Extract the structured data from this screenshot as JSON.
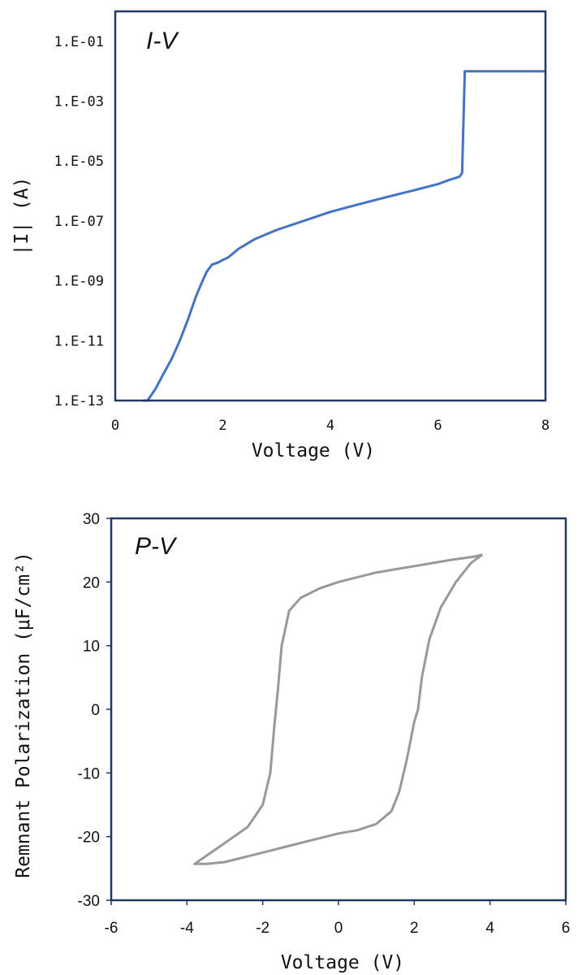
{
  "chart_data": [
    {
      "type": "line",
      "annotation": "I-V",
      "xlabel": "Voltage (V)",
      "ylabel": "|I| (A)",
      "xlim": [
        0,
        8
      ],
      "x_ticks": [
        "0",
        "2",
        "4",
        "6",
        "8"
      ],
      "y_log": true,
      "ylim_exp": [
        -13,
        0
      ],
      "y_ticks": [
        {
          "exp": -1,
          "label": "1.E-01"
        },
        {
          "exp": -3,
          "label": "1.E-03"
        },
        {
          "exp": -5,
          "label": "1.E-05"
        },
        {
          "exp": -7,
          "label": "1.E-07"
        },
        {
          "exp": -9,
          "label": "1.E-09"
        },
        {
          "exp": -11,
          "label": "1.E-11"
        },
        {
          "exp": -13,
          "label": "1.E-13"
        }
      ],
      "series": [
        {
          "color": "#4472C4",
          "x": [
            0.52,
            0.6,
            0.75,
            0.9,
            1.05,
            1.2,
            1.35,
            1.5,
            1.6,
            1.7,
            1.8,
            1.9,
            2.0,
            2.1,
            2.3,
            2.6,
            3.0,
            3.5,
            4.0,
            4.5,
            5.0,
            5.5,
            6.0,
            6.2,
            6.4,
            6.45,
            6.5,
            8.0
          ],
          "y": [
            1e-13,
            7e-14,
            2.5e-13,
            8e-13,
            2.5e-12,
            1e-11,
            5e-11,
            3e-10,
            8e-10,
            2e-09,
            3.5e-09,
            4e-09,
            5e-09,
            6e-09,
            1.2e-08,
            2.5e-08,
            5e-08,
            1e-07,
            2e-07,
            3.5e-07,
            6e-07,
            1e-06,
            1.7e-06,
            2.3e-06,
            3e-06,
            4e-06,
            0.01,
            0.01
          ]
        }
      ]
    },
    {
      "type": "line",
      "annotation": "P-V",
      "xlabel": "Voltage (V)",
      "ylabel": "Remnant Polarization (μF/cm²)",
      "xlim": [
        -6,
        6
      ],
      "ylim": [
        -30,
        30
      ],
      "x_ticks": [
        "-6",
        "-4",
        "-2",
        "0",
        "2",
        "4",
        "6"
      ],
      "y_ticks": [
        "30",
        "20",
        "10",
        "0",
        "-10",
        "-20",
        "-30"
      ],
      "series": [
        {
          "color": "#999999",
          "x": [
            3.8,
            3.6,
            3.0,
            2.0,
            1.0,
            0.0,
            -0.5,
            -1.0,
            -1.3,
            -1.5,
            -1.6,
            -1.65,
            -1.7,
            -1.8,
            -2.0,
            -2.4,
            -3.0,
            -3.8,
            -3.5,
            -3.0,
            -2.0,
            -1.0,
            0.0,
            0.5,
            1.0,
            1.4,
            1.6,
            1.8,
            2.0,
            2.1,
            2.2,
            2.4,
            2.7,
            3.1,
            3.5,
            3.8
          ],
          "y": [
            24.3,
            24.0,
            23.5,
            22.5,
            21.5,
            20.0,
            19.0,
            17.5,
            15.5,
            10.0,
            3.0,
            0.0,
            -3.0,
            -10.0,
            -15.0,
            -18.5,
            -21.0,
            -24.3,
            -24.3,
            -24.0,
            -22.5,
            -21.0,
            -19.5,
            -19.0,
            -18.0,
            -16.0,
            -13.0,
            -8.0,
            -2.0,
            0.0,
            5.0,
            11.0,
            16.0,
            20.0,
            23.0,
            24.3
          ]
        }
      ]
    }
  ]
}
